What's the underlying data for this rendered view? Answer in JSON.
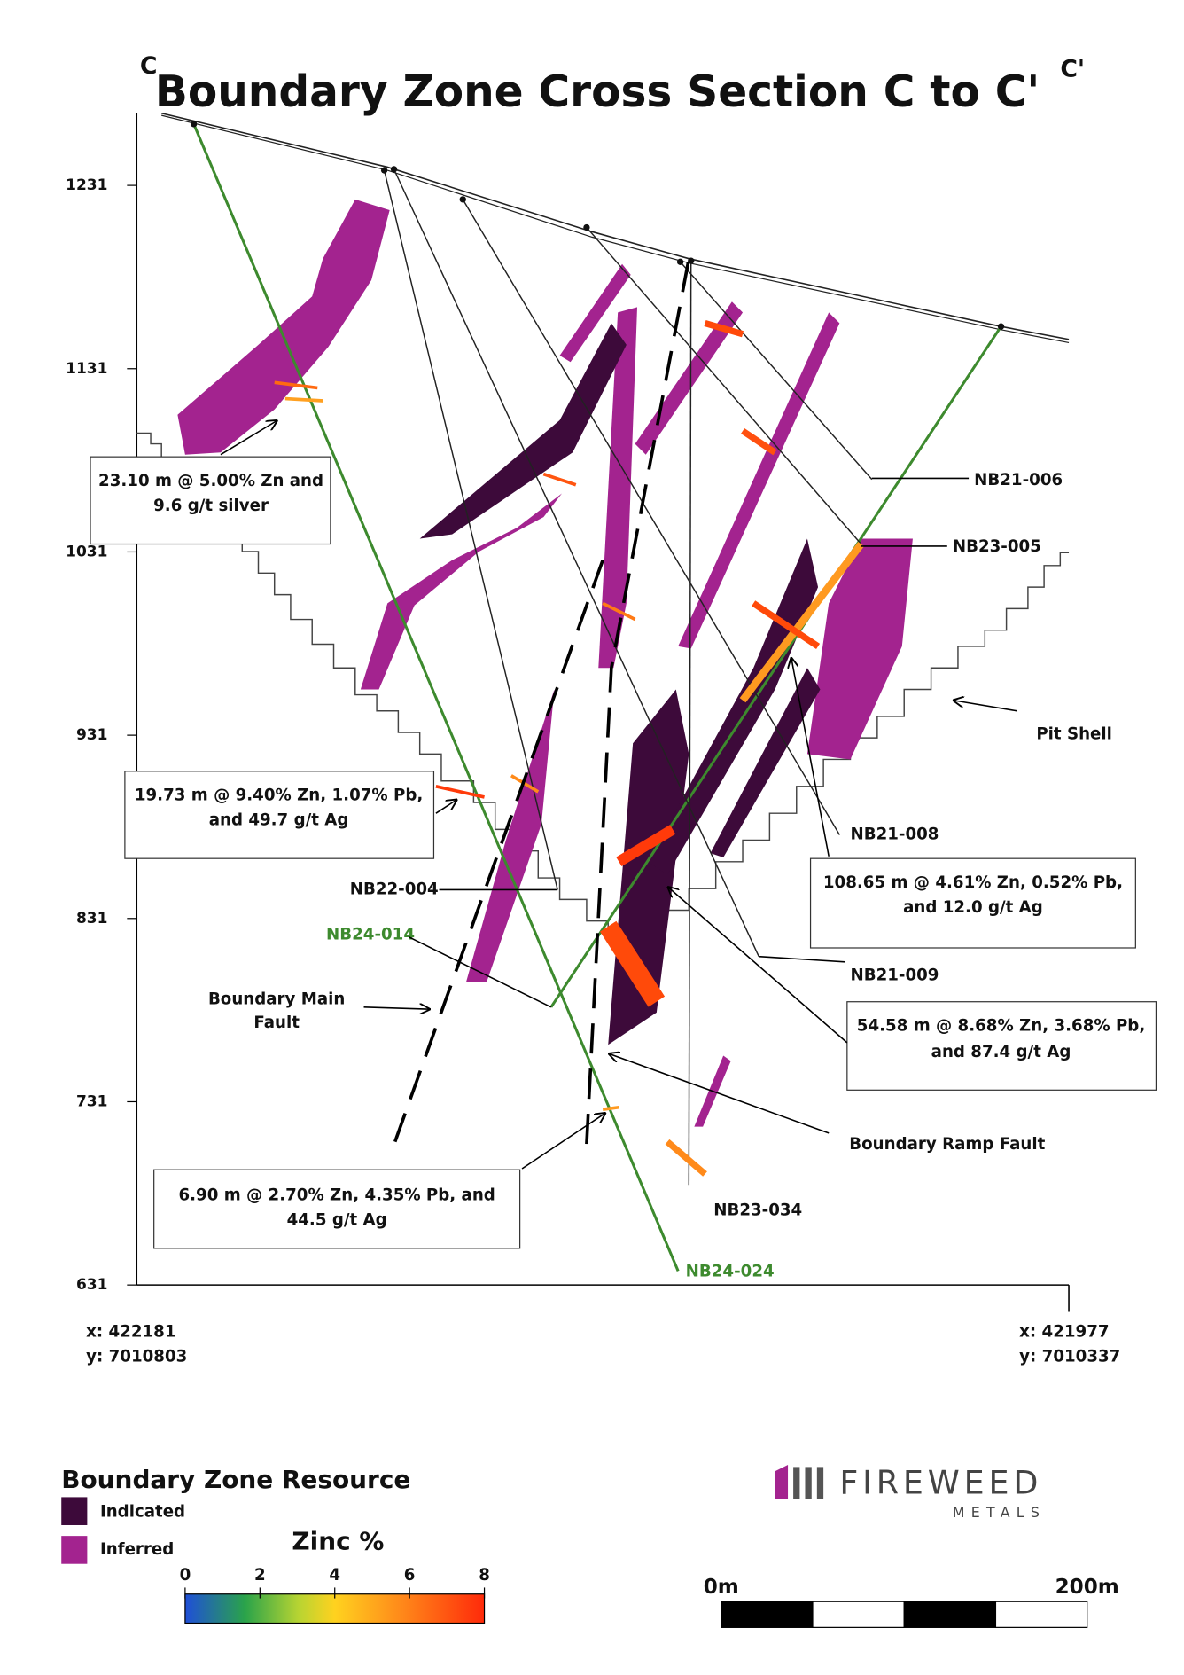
{
  "title": "Boundary Zone Cross Section C to C'",
  "section_start": "C",
  "section_end": "C'",
  "elevation_ticks": [
    1231,
    1131,
    1031,
    931,
    831,
    731,
    631
  ],
  "drill_holes": [
    "NB21-006",
    "NB23-005",
    "NB21-008",
    "NB22-004",
    "NB24-014",
    "NB21-009",
    "NB23-034",
    "NB24-024"
  ],
  "intercepts": [
    [
      "23.10 m @ 5.00% Zn and",
      "9.6 g/t silver"
    ],
    [
      "19.73 m @ 9.40% Zn, 1.07% Pb,",
      "and 49.7 g/t Ag"
    ],
    [
      "108.65 m @ 4.61% Zn, 0.52% Pb,",
      "and 12.0 g/t Ag"
    ],
    [
      "54.58 m @ 8.68% Zn, 3.68% Pb,",
      "and 87.4 g/t Ag"
    ],
    [
      "6.90 m @ 2.70% Zn, 4.35% Pb, and",
      "44.5 g/t Ag"
    ]
  ],
  "faults": {
    "main": [
      "Boundary Main",
      "Fault"
    ],
    "ramp": "Boundary Ramp Fault"
  },
  "pit_shell": "Pit Shell",
  "coordinates": {
    "start": {
      "x": "x: 422181",
      "y": "y: 7010803"
    },
    "end": {
      "x": "x: 421977",
      "y": "y: 7010337"
    }
  },
  "legend": {
    "title": "Boundary Zone Resource",
    "items": [
      "Indicated",
      "Inferred"
    ]
  },
  "zinc_scale": {
    "title": "Zinc %",
    "ticks": [
      0,
      2,
      4,
      6,
      8
    ]
  },
  "scale_bar": {
    "start": "0m",
    "end": "200m"
  },
  "logo": {
    "name": "FIREWEED",
    "sub": "METALS"
  }
}
